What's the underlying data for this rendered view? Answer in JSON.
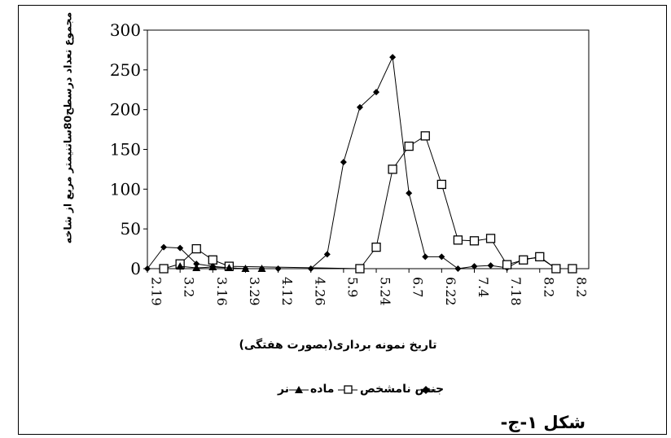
{
  "chart_data": {
    "type": "line",
    "ylabel": "مجموع تعداد درسطح80ساتنیمتر مربع از شاخه",
    "xlabel": "تاریخ نمونه برداری(بصورت هفتگی)",
    "ylim": [
      0,
      300
    ],
    "yticks": [
      0,
      50,
      100,
      150,
      200,
      250,
      300
    ],
    "x_tick_labels": [
      "2.19",
      "3.2",
      "3.16",
      "3.29",
      "4.12",
      "4.26",
      "5.9",
      "5.24",
      "6.7",
      "6.22",
      "7.4",
      "7.18",
      "8.2",
      "8.2"
    ],
    "legend_position": "bottom",
    "grid": false,
    "series": [
      {
        "name": "جنس نامشخص",
        "marker": "diamond",
        "points": [
          [
            0,
            0
          ],
          [
            0.5,
            27
          ],
          [
            1,
            26
          ],
          [
            1.5,
            6
          ],
          [
            2,
            3
          ],
          [
            2.5,
            1
          ],
          [
            3,
            0
          ],
          [
            3.5,
            0
          ],
          [
            4,
            0
          ],
          [
            5,
            0
          ],
          [
            5.5,
            18
          ],
          [
            6,
            134
          ],
          [
            6.5,
            203
          ],
          [
            7,
            222
          ],
          [
            7.5,
            266
          ],
          [
            8,
            95
          ],
          [
            8.5,
            15
          ],
          [
            9,
            15
          ],
          [
            9.5,
            0
          ],
          [
            10,
            3
          ],
          [
            10.5,
            4
          ],
          [
            11,
            1
          ],
          [
            11.5,
            12
          ],
          [
            12,
            14
          ],
          [
            12.5,
            0
          ],
          [
            13,
            0
          ]
        ]
      },
      {
        "name": "ماده",
        "marker": "square",
        "points": [
          [
            0.5,
            0
          ],
          [
            1,
            6
          ],
          [
            1.5,
            25
          ],
          [
            2,
            11
          ],
          [
            2.5,
            3
          ],
          [
            6.5,
            0
          ],
          [
            7,
            27
          ],
          [
            7.5,
            125
          ],
          [
            8,
            154
          ],
          [
            8.5,
            167
          ],
          [
            9,
            106
          ],
          [
            9.5,
            36
          ],
          [
            10,
            35
          ],
          [
            10.5,
            38
          ],
          [
            11,
            5
          ],
          [
            11.5,
            11
          ],
          [
            12,
            15
          ],
          [
            12.5,
            0
          ],
          [
            13,
            0
          ]
        ]
      },
      {
        "name": "نر",
        "marker": "triangle",
        "points": [
          [
            1,
            3
          ],
          [
            1.5,
            1
          ],
          [
            2,
            2
          ],
          [
            2.5,
            1
          ],
          [
            3,
            0
          ],
          [
            3.5,
            0
          ]
        ]
      }
    ]
  },
  "figure_label": "شکل ۱-ج-"
}
